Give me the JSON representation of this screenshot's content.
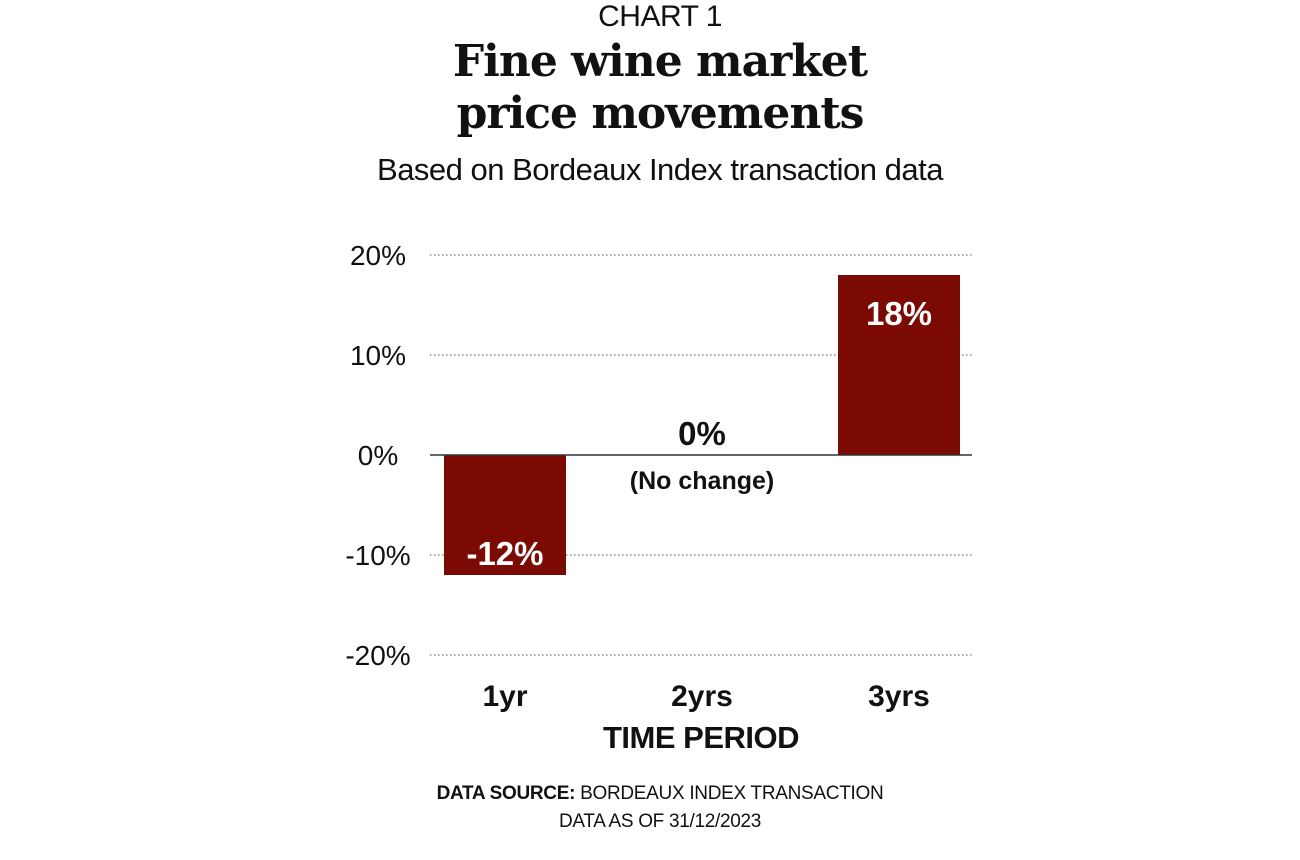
{
  "header": {
    "label": "CHART 1",
    "title_line1": "Fine wine market",
    "title_line2": "price movements",
    "subtitle": "Based on Bordeaux Index transaction data"
  },
  "chart_data": {
    "type": "bar",
    "categories": [
      "1yr",
      "2yrs",
      "3yrs"
    ],
    "values": [
      -12,
      0,
      18
    ],
    "data_labels": [
      "-12%",
      "0%",
      "18%"
    ],
    "annotations": [
      "",
      "(No change)",
      ""
    ],
    "ylim": [
      -20,
      20
    ],
    "yticks": [
      20,
      10,
      0,
      -10,
      -20
    ],
    "ytick_labels": [
      "20%",
      "10%",
      "0%",
      "-10%",
      "-20%"
    ],
    "xlabel": "TIME PERIOD",
    "ylabel": "",
    "grid": "horizontal dotted",
    "bar_color": "#7a0a02"
  },
  "footer": {
    "source_label": "DATA SOURCE:",
    "source_text": " BORDEAUX INDEX TRANSACTION",
    "date_text": "DATA AS OF 31/12/2023"
  }
}
